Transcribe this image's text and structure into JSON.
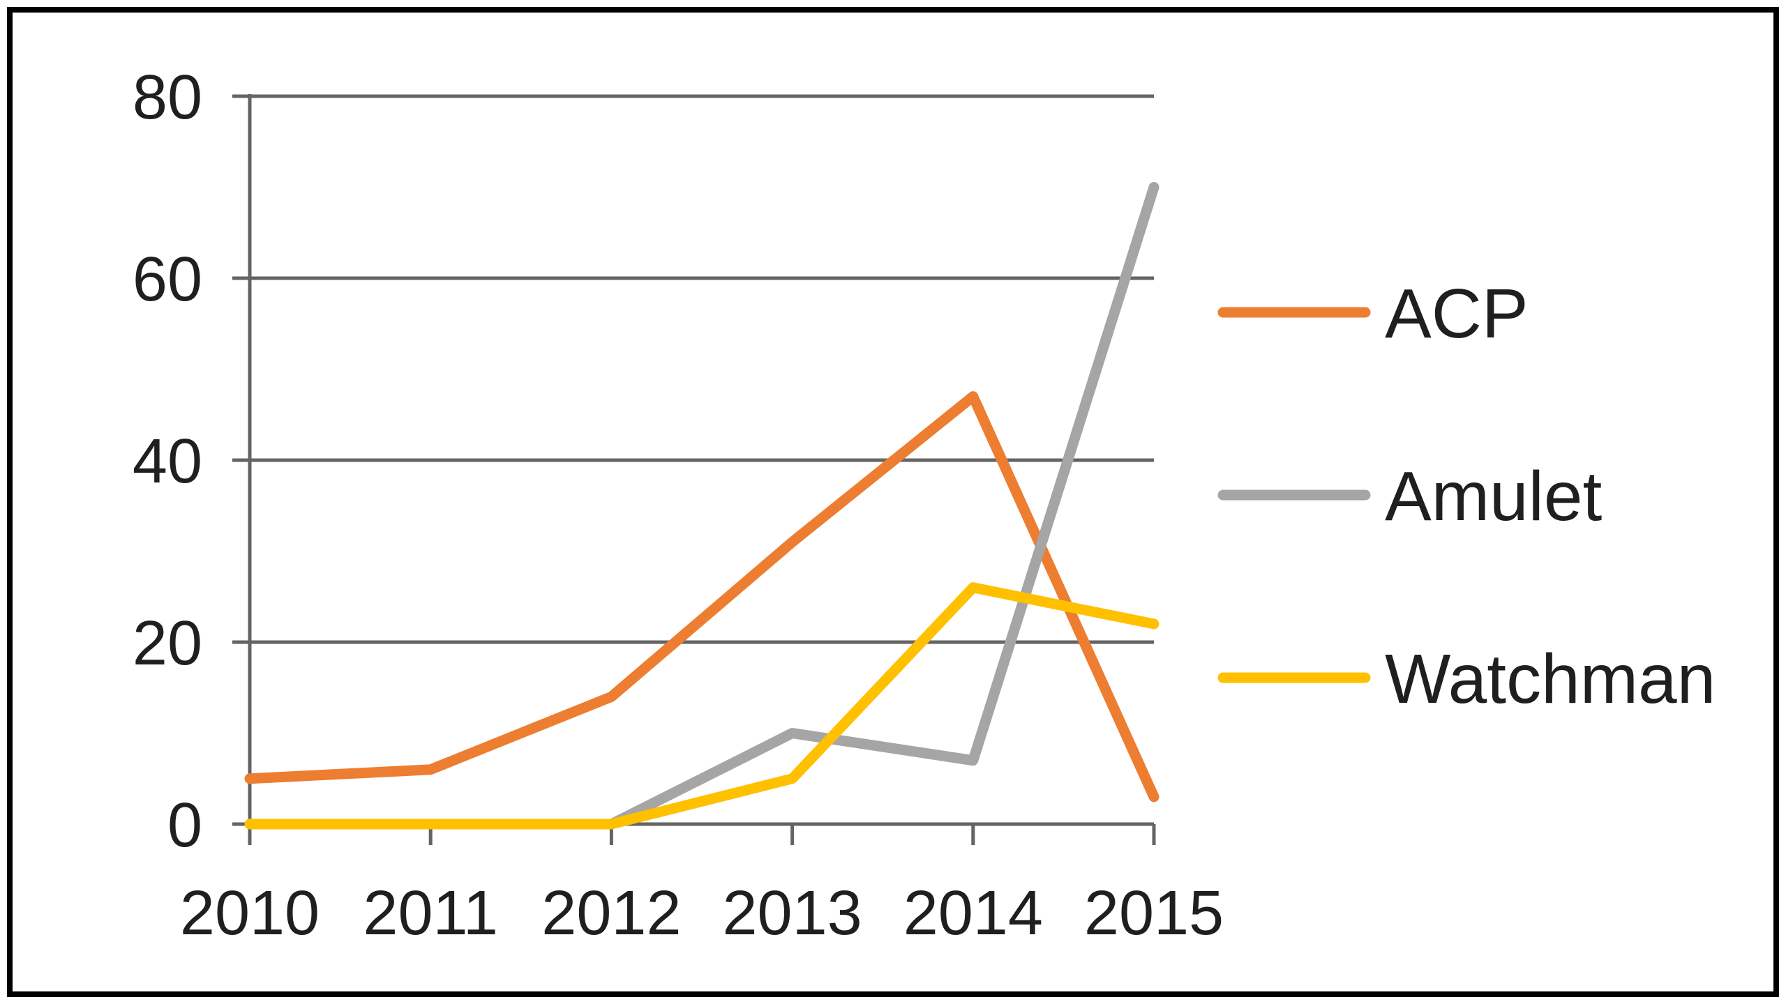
{
  "chart_data": {
    "type": "line",
    "title": "",
    "categories": [
      "2010",
      "2011",
      "2012",
      "2013",
      "2014",
      "2015"
    ],
    "series": [
      {
        "name": "ACP",
        "color": "#ED7D31",
        "values": [
          5,
          6,
          14,
          31,
          47,
          3
        ]
      },
      {
        "name": "Amulet",
        "color": "#A5A5A5",
        "values": [
          0,
          0,
          0,
          10,
          7,
          70
        ]
      },
      {
        "name": "Watchman",
        "color": "#FFC000",
        "values": [
          0,
          0,
          0,
          5,
          26,
          22
        ]
      }
    ],
    "xlabel": "",
    "ylabel": "",
    "ylim": [
      0,
      80
    ],
    "yticks": [
      0,
      20,
      40,
      60,
      80
    ],
    "grid": "horizontal",
    "legend_position": "right",
    "colors": {
      "axis_and_grid": "#646464",
      "tick_text": "#1F1F1F",
      "background": "#FFFFFF",
      "outer_border": "#000000"
    }
  }
}
